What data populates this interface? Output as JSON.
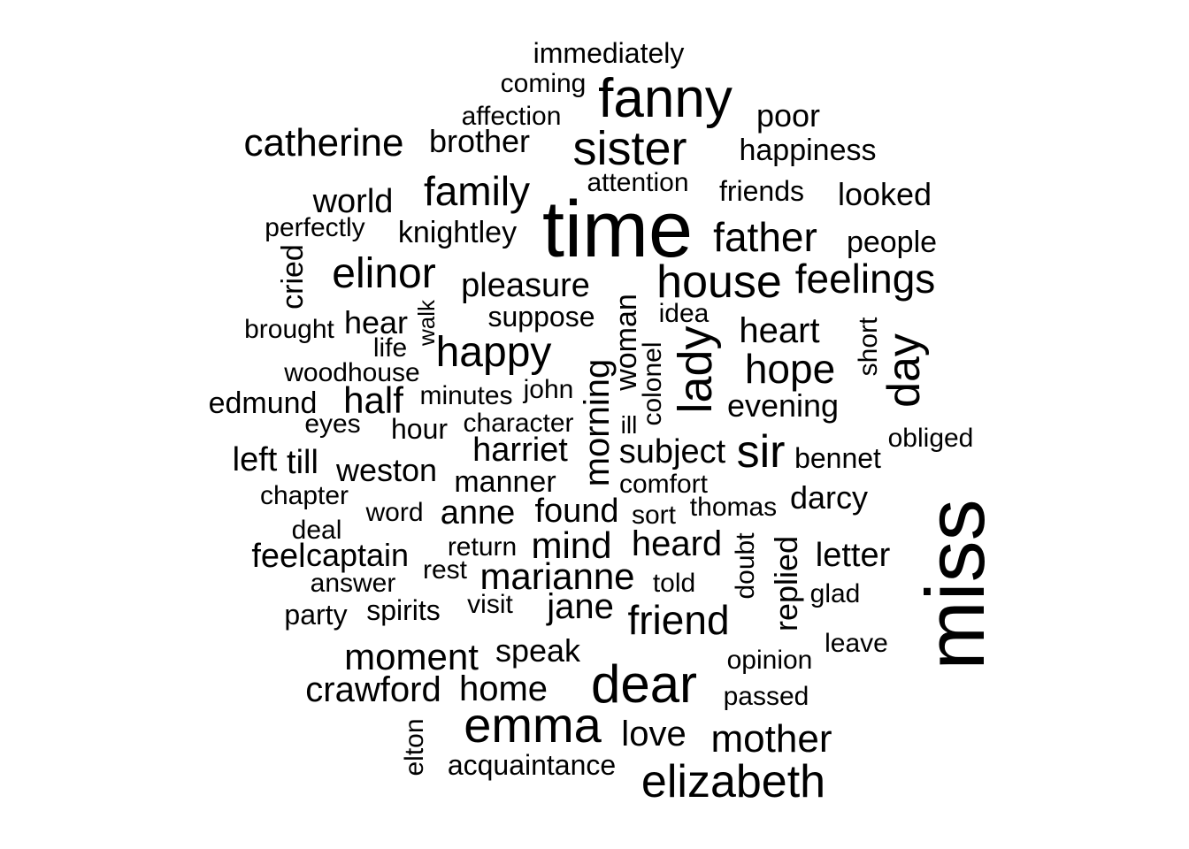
{
  "colors": {
    "background": "#ffffff",
    "text": "#000000"
  },
  "words": [
    "immediately",
    "coming",
    "fanny",
    "affection",
    "poor",
    "catherine",
    "brother",
    "sister",
    "happiness",
    "attention",
    "family",
    "friends",
    "world",
    "looked",
    "time",
    "perfectly",
    "knightley",
    "father",
    "people",
    "cried",
    "elinor",
    "pleasure",
    "house",
    "feelings",
    "suppose",
    "woman",
    "idea",
    "brought",
    "hear",
    "walk",
    "heart",
    "life",
    "happy",
    "lady",
    "short",
    "day",
    "hope",
    "woodhouse",
    "colonel",
    "edmund",
    "half",
    "minutes",
    "john",
    "morning",
    "evening",
    "eyes",
    "hour",
    "character",
    "ill",
    "obliged",
    "harriet",
    "left",
    "till",
    "subject",
    "sir",
    "bennet",
    "weston",
    "manner",
    "chapter",
    "comfort",
    "darcy",
    "word",
    "anne",
    "found",
    "sort",
    "thomas",
    "deal",
    "miss",
    "return",
    "feel",
    "captain",
    "mind",
    "heard",
    "doubt",
    "replied",
    "letter",
    "rest",
    "marianne",
    "answer",
    "told",
    "glad",
    "visit",
    "jane",
    "party",
    "spirits",
    "friend",
    "leave",
    "speak",
    "moment",
    "opinion",
    "crawford",
    "home",
    "dear",
    "passed",
    "emma",
    "love",
    "mother",
    "elton",
    "acquaintance",
    "elizabeth"
  ]
}
